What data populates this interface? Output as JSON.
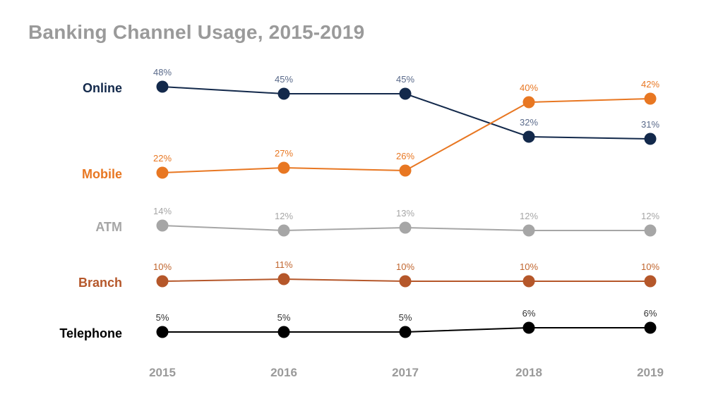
{
  "chart_data": {
    "type": "line",
    "title": "Banking Channel Usage, 2015-2019",
    "x": [
      "2015",
      "2016",
      "2017",
      "2018",
      "2019"
    ],
    "value_suffix": "%",
    "ylim": [
      0,
      50
    ],
    "grid": false,
    "legend": "left",
    "series": [
      {
        "name": "Online",
        "color": "#13294b",
        "label_color": "#5a6a8a",
        "values": [
          48,
          45,
          45,
          32,
          31
        ]
      },
      {
        "name": "Mobile",
        "color": "#e87722",
        "label_color": "#e87722",
        "values": [
          22,
          27,
          26,
          40,
          42
        ]
      },
      {
        "name": "ATM",
        "color": "#a6a6a6",
        "label_color": "#a6a6a6",
        "values": [
          14,
          12,
          13,
          12,
          12
        ]
      },
      {
        "name": "Branch",
        "color": "#b5572a",
        "label_color": "#c0652e",
        "values": [
          10,
          11,
          10,
          10,
          10
        ]
      },
      {
        "name": "Telephone",
        "color": "#000000",
        "label_color": "#333333",
        "values": [
          5,
          5,
          5,
          6,
          6
        ]
      }
    ]
  }
}
